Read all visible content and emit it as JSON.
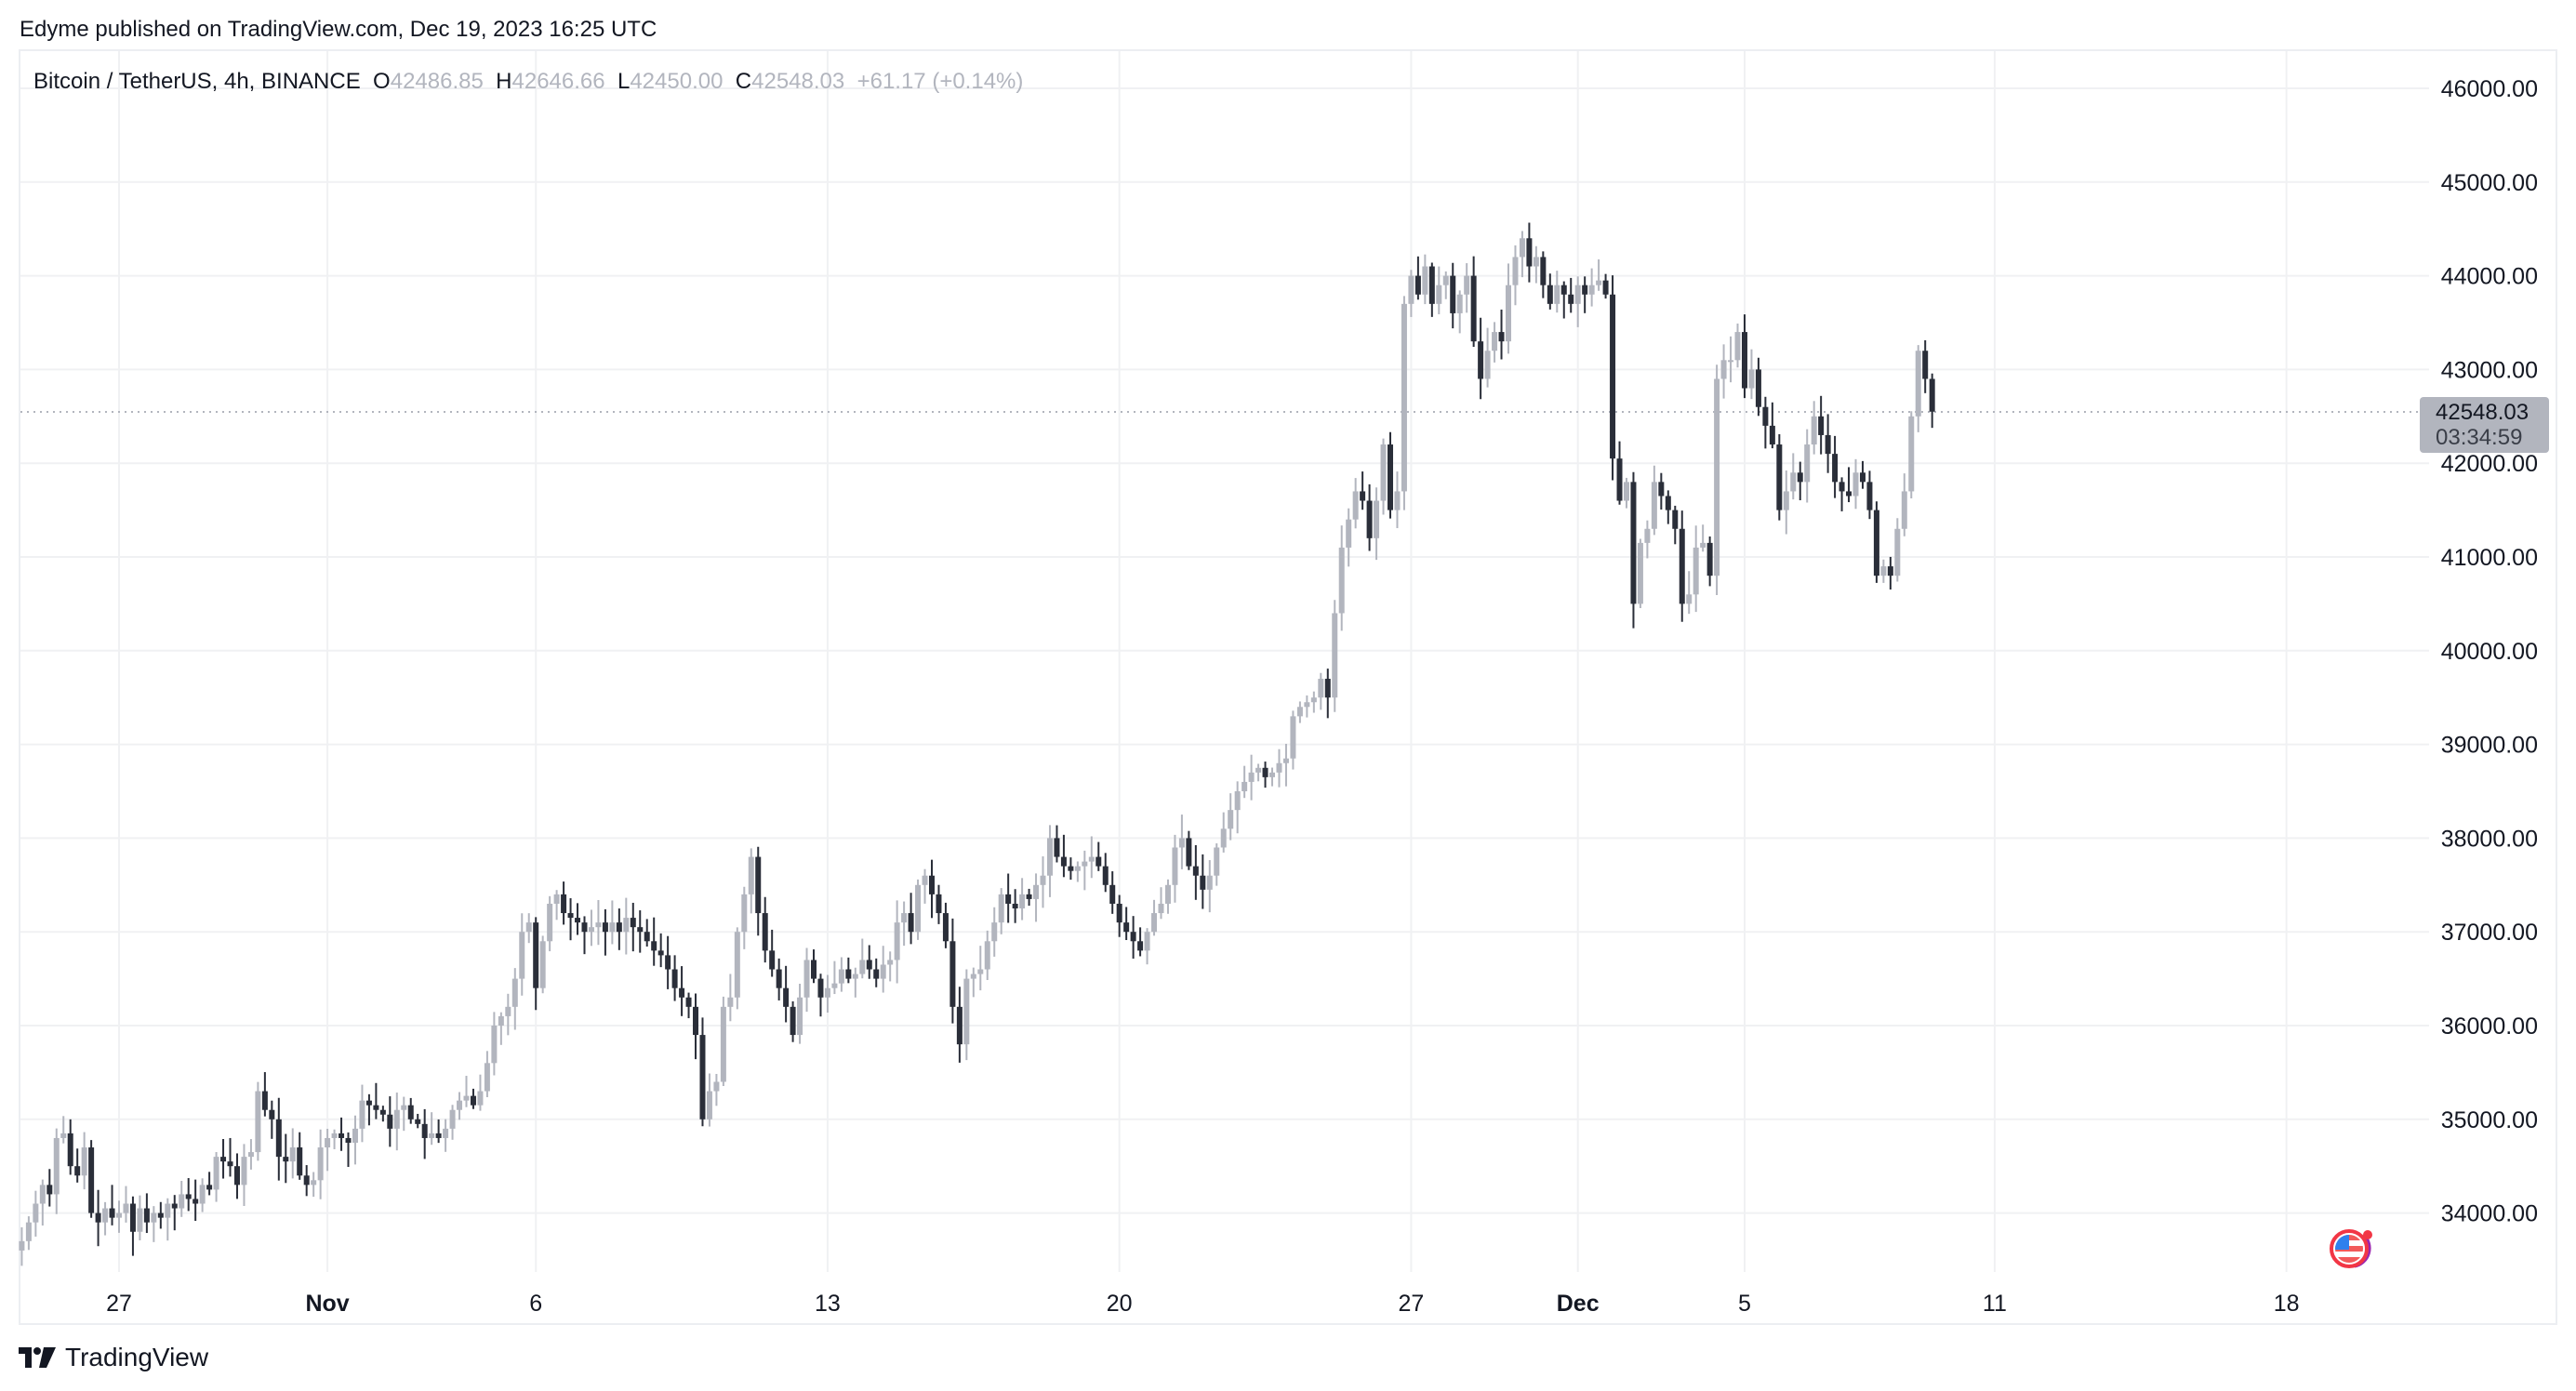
{
  "header": {
    "published": "Edyme published on TradingView.com, Dec 19, 2023 16:25 UTC"
  },
  "legend": {
    "symbol": "Bitcoin / TetherUS, 4h, BINANCE",
    "open_label": "O",
    "open": "42486.85",
    "high_label": "H",
    "high": "42646.66",
    "low_label": "L",
    "low": "42450.00",
    "close_label": "C",
    "close": "42548.03",
    "change": "+61.17 (+0.14%)"
  },
  "price_badge": {
    "price": "42548.03",
    "countdown": "03:34:59"
  },
  "footer": {
    "brand": "TradingView"
  },
  "colors": {
    "up": "#b2b5be",
    "down": "#2a2e39",
    "grid": "#f0f1f3",
    "badge": "#b2b5be"
  },
  "chart_data": {
    "type": "candlestick",
    "title": "Bitcoin / TetherUS, 4h, BINANCE",
    "interval": "4h",
    "y_ticks": [
      34000,
      35000,
      36000,
      37000,
      38000,
      39000,
      40000,
      41000,
      42000,
      43000,
      44000,
      45000,
      46000
    ],
    "y_tick_labels": [
      "34000.00",
      "35000.00",
      "36000.00",
      "37000.00",
      "38000.00",
      "39000.00",
      "40000.00",
      "41000.00",
      "42000.00",
      "43000.00",
      "44000.00",
      "45000.00",
      "46000.00"
    ],
    "ylim": [
      33300,
      46500
    ],
    "x_ticks": [
      {
        "label": "27",
        "bold": false,
        "candle": 0
      },
      {
        "label": "Nov",
        "bold": true,
        "candle": 30
      },
      {
        "label": "6",
        "bold": false,
        "candle": 60
      },
      {
        "label": "13",
        "bold": false,
        "candle": 102
      },
      {
        "label": "20",
        "bold": false,
        "candle": 144
      },
      {
        "label": "27",
        "bold": false,
        "candle": 186
      },
      {
        "label": "Dec",
        "bold": true,
        "candle": 210
      },
      {
        "label": "5",
        "bold": false,
        "candle": 234
      },
      {
        "label": "11",
        "bold": false,
        "candle": 270
      },
      {
        "label": "18",
        "bold": false,
        "candle": 312
      }
    ],
    "first_candle_index": -14,
    "last_price": 42548.03,
    "closes": [
      33700,
      33900,
      34100,
      34300,
      34200,
      34800,
      34850,
      34500,
      34400,
      34700,
      34000,
      33900,
      34050,
      33950,
      34000,
      34100,
      33800,
      34050,
      33900,
      34000,
      33950,
      34100,
      34050,
      34200,
      34150,
      34100,
      34300,
      34250,
      34600,
      34550,
      34500,
      34300,
      34600,
      34650,
      35300,
      35100,
      35000,
      34600,
      34550,
      34700,
      34400,
      34300,
      34350,
      34700,
      34800,
      34850,
      34800,
      34750,
      34900,
      35200,
      35150,
      35100,
      35050,
      34900,
      35100,
      35150,
      35000,
      34950,
      34800,
      34850,
      34800,
      34900,
      35100,
      35200,
      35250,
      35150,
      35300,
      35600,
      36000,
      36100,
      36200,
      36500,
      37000,
      37100,
      36400,
      36900,
      37300,
      37400,
      37200,
      37150,
      37100,
      37000,
      37050,
      37100,
      37000,
      37100,
      37000,
      37150,
      37050,
      37000,
      36900,
      36800,
      36750,
      36600,
      36400,
      36300,
      36200,
      35900,
      35000,
      35300,
      35400,
      36200,
      36300,
      37000,
      37400,
      37800,
      37200,
      36800,
      36600,
      36400,
      36200,
      35900,
      36300,
      36700,
      36500,
      36300,
      36400,
      36450,
      36600,
      36500,
      36550,
      36700,
      36600,
      36500,
      36650,
      36700,
      37100,
      37200,
      37000,
      37500,
      37600,
      37400,
      37200,
      36900,
      36200,
      35800,
      36500,
      36550,
      36600,
      36900,
      37100,
      37400,
      37300,
      37250,
      37400,
      37350,
      37500,
      37600,
      38000,
      37800,
      37700,
      37650,
      37700,
      37750,
      37800,
      37700,
      37500,
      37300,
      37100,
      37000,
      36900,
      36800,
      37000,
      37200,
      37300,
      37500,
      37900,
      38000,
      37700,
      37600,
      37450,
      37600,
      37900,
      38100,
      38300,
      38500,
      38600,
      38700,
      38750,
      38650,
      38700,
      38800,
      38850,
      39300,
      39400,
      39450,
      39500,
      39700,
      39500,
      40400,
      41100,
      41400,
      41700,
      41600,
      41200,
      41600,
      42200,
      41500,
      41700,
      43700,
      44000,
      43800,
      44100,
      43700,
      43900,
      44000,
      43600,
      43800,
      44000,
      43300,
      42900,
      43200,
      43400,
      43300,
      43900,
      44200,
      44400,
      44100,
      44200,
      43900,
      43700,
      43900,
      43800,
      43700,
      43900,
      43800,
      43900,
      43950,
      43800,
      42050,
      41600,
      41800,
      40500,
      41150,
      41300,
      41800,
      41650,
      41500,
      41300,
      40500,
      40600,
      41100,
      41150,
      40800,
      42900,
      43100,
      43100,
      43400,
      42800,
      43000,
      42600,
      42400,
      42200,
      41500,
      41700,
      41900,
      41800,
      42200,
      42500,
      42300,
      42100,
      41800,
      41700,
      41650,
      41900,
      41800,
      41500,
      40800,
      40900,
      40800,
      41300,
      41700,
      42500,
      43200,
      42900,
      42550
    ]
  }
}
